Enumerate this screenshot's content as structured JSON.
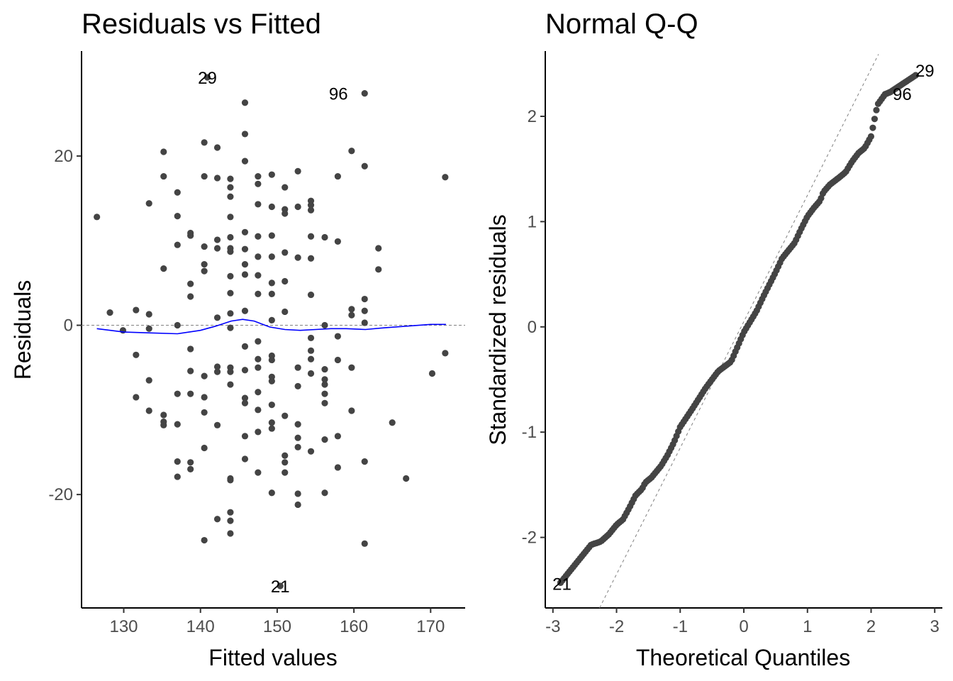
{
  "chart_data": [
    {
      "type": "scatter",
      "title": "Residuals vs Fitted",
      "xlabel": "Fitted values",
      "ylabel": "Residuals",
      "xlim": [
        124.5,
        174.5
      ],
      "ylim": [
        -33.4,
        32.4
      ],
      "xticks": [
        130,
        140,
        150,
        160,
        170
      ],
      "yticks": [
        -20,
        0,
        20
      ],
      "xtick_labels": [
        "130",
        "140",
        "150",
        "160",
        "170"
      ],
      "ytick_labels": [
        "-20",
        "0",
        "20"
      ],
      "grid": false,
      "reference_line": {
        "y": 0,
        "style": "dashed",
        "color": "#808080"
      },
      "smooth": {
        "color": "#0000ff",
        "x": [
          126.5,
          130,
          133.5,
          137,
          140,
          142,
          144,
          145.5,
          147,
          149,
          151,
          153,
          155,
          157,
          159,
          161.5,
          164,
          167,
          170,
          172
        ],
        "y": [
          -0.4,
          -0.8,
          -0.9,
          -1.0,
          -0.6,
          -0.1,
          0.5,
          0.7,
          0.5,
          -0.2,
          -0.5,
          -0.6,
          -0.5,
          -0.4,
          -0.4,
          -0.5,
          -0.3,
          -0.1,
          0.1,
          0.1
        ]
      },
      "point_color": "#444444",
      "points": [
        [
          126.5,
          12.8
        ],
        [
          128.2,
          1.5
        ],
        [
          129.9,
          -0.6
        ],
        [
          131.6,
          1.8
        ],
        [
          131.6,
          -3.5
        ],
        [
          131.6,
          -8.5
        ],
        [
          133.3,
          14.4
        ],
        [
          133.3,
          1.3
        ],
        [
          133.3,
          -0.4
        ],
        [
          133.3,
          -6.5
        ],
        [
          133.3,
          -10.1
        ],
        [
          135.2,
          20.5
        ],
        [
          135.2,
          17.6
        ],
        [
          135.2,
          6.7
        ],
        [
          135.2,
          -10.6
        ],
        [
          135.2,
          -11.4
        ],
        [
          135.2,
          -11.8
        ],
        [
          137.0,
          15.7
        ],
        [
          137.0,
          12.9
        ],
        [
          137.0,
          9.5
        ],
        [
          137.0,
          0.0
        ],
        [
          137.0,
          -8.1
        ],
        [
          137.0,
          -11.7
        ],
        [
          137.0,
          -16.1
        ],
        [
          137.0,
          -17.9
        ],
        [
          138.7,
          10.9
        ],
        [
          138.7,
          10.6
        ],
        [
          138.7,
          4.9
        ],
        [
          138.7,
          3.4
        ],
        [
          138.7,
          -2.8
        ],
        [
          138.7,
          -5.4
        ],
        [
          138.7,
          -8.1
        ],
        [
          138.7,
          -16.2
        ],
        [
          138.7,
          -17.0
        ],
        [
          140.5,
          21.6
        ],
        [
          140.5,
          17.6
        ],
        [
          140.5,
          9.3
        ],
        [
          140.5,
          7.2
        ],
        [
          140.5,
          6.4
        ],
        [
          140.5,
          -6.0
        ],
        [
          140.5,
          -8.5
        ],
        [
          140.5,
          -10.3
        ],
        [
          140.5,
          -14.5
        ],
        [
          140.5,
          -25.4
        ],
        [
          140.9,
          29.3
        ],
        [
          142.2,
          21.0
        ],
        [
          142.2,
          17.4
        ],
        [
          142.2,
          10.1
        ],
        [
          142.2,
          9.1
        ],
        [
          142.2,
          0.9
        ],
        [
          142.2,
          -4.9
        ],
        [
          142.2,
          -5.5
        ],
        [
          142.2,
          -11.8
        ],
        [
          142.2,
          -22.9
        ],
        [
          143.9,
          17.3
        ],
        [
          143.9,
          16.3
        ],
        [
          143.9,
          15.2
        ],
        [
          143.9,
          12.8
        ],
        [
          143.9,
          10.4
        ],
        [
          143.9,
          9.1
        ],
        [
          143.9,
          8.7
        ],
        [
          143.9,
          5.8
        ],
        [
          143.9,
          3.8
        ],
        [
          143.9,
          1.4
        ],
        [
          143.9,
          -0.3
        ],
        [
          143.9,
          -5.0
        ],
        [
          143.9,
          -5.5
        ],
        [
          143.9,
          -7.0
        ],
        [
          143.9,
          -18.1
        ],
        [
          143.9,
          -18.3
        ],
        [
          143.9,
          -22.1
        ],
        [
          143.9,
          -23.1
        ],
        [
          143.9,
          -24.6
        ],
        [
          145.8,
          26.3
        ],
        [
          145.8,
          22.6
        ],
        [
          145.8,
          19.4
        ],
        [
          145.8,
          11.0
        ],
        [
          145.8,
          9.0
        ],
        [
          145.8,
          7.2
        ],
        [
          145.8,
          6.0
        ],
        [
          145.8,
          1.7
        ],
        [
          145.8,
          -2.5
        ],
        [
          145.8,
          -5.3
        ],
        [
          145.8,
          -8.6
        ],
        [
          145.8,
          -9.2
        ],
        [
          145.8,
          -13.1
        ],
        [
          145.8,
          -15.8
        ],
        [
          147.5,
          17.6
        ],
        [
          147.5,
          16.7
        ],
        [
          147.5,
          14.3
        ],
        [
          147.5,
          10.5
        ],
        [
          147.5,
          8.1
        ],
        [
          147.5,
          5.9
        ],
        [
          147.5,
          3.7
        ],
        [
          147.5,
          -1.9
        ],
        [
          147.5,
          -4.0
        ],
        [
          147.5,
          -5.0
        ],
        [
          147.5,
          -7.9
        ],
        [
          147.5,
          -10.0
        ],
        [
          147.5,
          -12.6
        ],
        [
          147.5,
          -17.4
        ],
        [
          149.3,
          17.8
        ],
        [
          149.3,
          14.0
        ],
        [
          149.3,
          10.6
        ],
        [
          149.3,
          8.1
        ],
        [
          149.3,
          5.0
        ],
        [
          149.3,
          3.7
        ],
        [
          149.3,
          0.6
        ],
        [
          149.3,
          -3.6
        ],
        [
          149.3,
          -4.1
        ],
        [
          149.3,
          -6.1
        ],
        [
          149.3,
          -6.6
        ],
        [
          149.3,
          -9.4
        ],
        [
          149.3,
          -11.5
        ],
        [
          149.3,
          -12.2
        ],
        [
          149.3,
          -19.8
        ],
        [
          151.0,
          16.3
        ],
        [
          151.0,
          13.7
        ],
        [
          151.0,
          13.2
        ],
        [
          151.0,
          8.6
        ],
        [
          151.0,
          5.2
        ],
        [
          151.0,
          1.6
        ],
        [
          151.0,
          -10.7
        ],
        [
          151.0,
          -15.4
        ],
        [
          151.0,
          -16.2
        ],
        [
          151.0,
          -17.4
        ],
        [
          150.4,
          -30.8
        ],
        [
          152.7,
          18.2
        ],
        [
          152.7,
          14.0
        ],
        [
          152.7,
          8.0
        ],
        [
          152.7,
          -5.0
        ],
        [
          152.7,
          -7.2
        ],
        [
          152.7,
          -11.7
        ],
        [
          152.7,
          -13.3
        ],
        [
          152.7,
          -14.4
        ],
        [
          152.7,
          -19.9
        ],
        [
          152.7,
          -21.2
        ],
        [
          154.4,
          14.7
        ],
        [
          154.4,
          14.2
        ],
        [
          154.4,
          13.6
        ],
        [
          154.4,
          10.5
        ],
        [
          154.4,
          7.9
        ],
        [
          154.4,
          3.6
        ],
        [
          154.4,
          -1.5
        ],
        [
          154.4,
          -3.0
        ],
        [
          154.4,
          -4.0
        ],
        [
          154.4,
          -5.7
        ],
        [
          154.4,
          -14.9
        ],
        [
          156.2,
          10.4
        ],
        [
          156.2,
          0.0
        ],
        [
          156.2,
          -5.2
        ],
        [
          156.2,
          -6.4
        ],
        [
          156.2,
          -7.0
        ],
        [
          156.2,
          -8.1
        ],
        [
          156.2,
          -9.2
        ],
        [
          156.2,
          -13.5
        ],
        [
          156.2,
          -19.8
        ],
        [
          157.9,
          17.6
        ],
        [
          157.9,
          9.9
        ],
        [
          157.9,
          -1.3
        ],
        [
          157.9,
          -4.1
        ],
        [
          157.9,
          -13.1
        ],
        [
          157.9,
          -16.8
        ],
        [
          159.7,
          20.6
        ],
        [
          159.7,
          1.9
        ],
        [
          159.7,
          1.2
        ],
        [
          159.7,
          -5.0
        ],
        [
          159.7,
          -10.1
        ],
        [
          161.4,
          27.4
        ],
        [
          161.4,
          18.8
        ],
        [
          161.4,
          3.1
        ],
        [
          161.4,
          1.7
        ],
        [
          161.4,
          0.3
        ],
        [
          161.4,
          -16.1
        ],
        [
          161.4,
          -25.8
        ],
        [
          163.2,
          9.1
        ],
        [
          163.2,
          6.6
        ],
        [
          165.0,
          -11.5
        ],
        [
          166.8,
          -18.1
        ],
        [
          170.2,
          -5.7
        ],
        [
          171.9,
          17.5
        ],
        [
          171.9,
          -3.3
        ]
      ],
      "labels": [
        {
          "text": "29",
          "x": 140.9,
          "y": 29.3
        },
        {
          "text": "96",
          "x": 161.4,
          "y": 27.4
        },
        {
          "text": "21",
          "x": 150.4,
          "y": -30.8
        }
      ]
    },
    {
      "type": "scatter",
      "title": "Normal Q-Q",
      "xlabel": "Theoretical Quantiles",
      "ylabel": "Standardized residuals",
      "xlim": [
        -3.12,
        3.12
      ],
      "ylim": [
        -2.67,
        2.62
      ],
      "xticks": [
        -3,
        -2,
        -1,
        0,
        1,
        2,
        3
      ],
      "yticks": [
        -2,
        -1,
        0,
        1,
        2
      ],
      "xtick_labels": [
        "-3",
        "-2",
        "-1",
        "0",
        "1",
        "2",
        "3"
      ],
      "ytick_labels": [
        "-2",
        "-1",
        "0",
        "1",
        "2"
      ],
      "grid": false,
      "reference_line": {
        "slope": 1.2,
        "intercept": 0.05,
        "style": "dashed",
        "color": "#808080"
      },
      "point_color": "#444444",
      "n_points": 200,
      "quantile_curve": {
        "x": [
          -2.88,
          -2.4,
          -2.25,
          -2.12,
          -2.0,
          -1.9,
          -1.8,
          -1.7,
          -1.6,
          -1.55,
          -1.45,
          -1.3,
          -1.2,
          -1.1,
          -1.0,
          -0.9,
          -0.8,
          -0.6,
          -0.4,
          -0.2,
          0.0,
          0.2,
          0.3,
          0.4,
          0.5,
          0.6,
          0.8,
          0.9,
          1.0,
          1.1,
          1.2,
          1.25,
          1.35,
          1.5,
          1.6,
          1.7,
          1.8,
          1.9,
          2.0,
          2.1,
          2.22,
          2.3,
          2.7
        ],
        "y": [
          -2.43,
          -2.07,
          -2.04,
          -1.97,
          -1.88,
          -1.83,
          -1.72,
          -1.6,
          -1.54,
          -1.48,
          -1.43,
          -1.32,
          -1.22,
          -1.1,
          -0.95,
          -0.86,
          -0.77,
          -0.58,
          -0.42,
          -0.33,
          -0.05,
          0.15,
          0.28,
          0.4,
          0.52,
          0.65,
          0.8,
          0.93,
          1.05,
          1.13,
          1.2,
          1.28,
          1.35,
          1.42,
          1.47,
          1.57,
          1.65,
          1.7,
          1.81,
          2.11,
          2.21,
          2.23,
          2.39
        ]
      },
      "labels": [
        {
          "text": "29",
          "x": 2.7,
          "y": 2.39
        },
        {
          "text": "96",
          "x": 2.3,
          "y": 2.23
        },
        {
          "text": "21",
          "x": -2.88,
          "y": -2.43
        }
      ]
    }
  ]
}
